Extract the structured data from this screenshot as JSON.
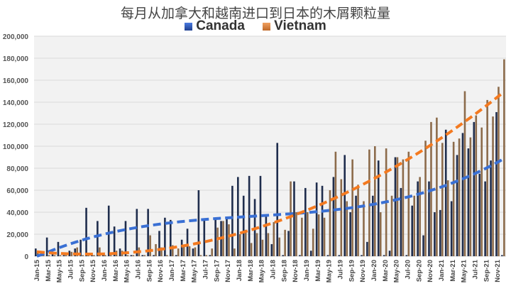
{
  "chart_data": {
    "type": "bar",
    "title": "每月从加拿大和越南进口到日本的木屑颗粒量",
    "xlabel": "",
    "ylabel": "",
    "ylim": [
      0,
      200000
    ],
    "yticks": [
      "0",
      "20,000",
      "40,000",
      "60,000",
      "80,000",
      "100,000",
      "120,000",
      "140,000",
      "160,000",
      "180,000",
      "200,000"
    ],
    "grid": true,
    "legend_position": "top",
    "categories": [
      "Jan-15",
      "Feb-15",
      "Mar-15",
      "Apr-15",
      "May-15",
      "Jun-15",
      "Jul-15",
      "Aug-15",
      "Sep-15",
      "Oct-15",
      "Nov-15",
      "Dec-15",
      "Jan-16",
      "Feb-16",
      "Mar-16",
      "Apr-16",
      "May-16",
      "Jun-16",
      "Jul-16",
      "Aug-16",
      "Sep-16",
      "Oct-16",
      "Nov-16",
      "Dec-16",
      "Jan-17",
      "Feb-17",
      "Mar-17",
      "Apr-17",
      "May-17",
      "Jun-17",
      "Jul-17",
      "Aug-17",
      "Sep-17",
      "Oct-17",
      "Nov-17",
      "Dec-17",
      "Jan-18",
      "Feb-18",
      "Mar-18",
      "Apr-18",
      "May-18",
      "Jun-18",
      "Jul-18",
      "Aug-18",
      "Sep-18",
      "Oct-18",
      "Nov-18",
      "Dec-18",
      "Jan-19",
      "Feb-19",
      "Mar-19",
      "Apr-19",
      "May-19",
      "Jun-19",
      "Jul-19",
      "Aug-19",
      "Sep-19",
      "Oct-19",
      "Nov-19",
      "Dec-19",
      "Jan-20",
      "Feb-20",
      "Mar-20",
      "Apr-20",
      "May-20",
      "Jun-20",
      "Jul-20",
      "Aug-20",
      "Sep-20",
      "Oct-20",
      "Nov-20",
      "Dec-20",
      "Jan-21",
      "Feb-21",
      "Mar-21",
      "Apr-21",
      "May-21",
      "Jun-21",
      "Jul-21",
      "Aug-21",
      "Sep-21",
      "Oct-21",
      "Nov-21",
      "Dec-21"
    ],
    "series": [
      {
        "name": "Canada",
        "color": "#1f2d4d",
        "trend_color": "#3a70d4",
        "values": [
          7000,
          1000,
          17000,
          2000,
          13000,
          1000,
          5000,
          7000,
          15000,
          44000,
          1000,
          32000,
          1000,
          46000,
          27000,
          7000,
          32000,
          1000,
          43000,
          1000,
          43000,
          1000,
          23000,
          35000,
          33000,
          1000,
          15000,
          25000,
          7000,
          60000,
          33000,
          1000,
          35000,
          32000,
          36000,
          64000,
          72000,
          55000,
          73000,
          52000,
          73000,
          36000,
          11000,
          103000,
          1000,
          23000,
          68000,
          1000,
          62000,
          5000,
          67000,
          64000,
          1000,
          72000,
          1000,
          92000,
          40000,
          55000,
          1000,
          13000,
          55000,
          87000,
          1000,
          5000,
          90000,
          62000,
          1000,
          46000,
          68000,
          19000,
          68000,
          40000,
          42000,
          115000,
          50000,
          92000,
          112000,
          98000,
          122000,
          75000,
          68000,
          87000,
          131000,
          1000
        ]
      },
      {
        "name": "Vietnam",
        "color": "#8c6b4b",
        "trend_color": "#f47a20",
        "values": [
          5000,
          1000,
          1000,
          1000,
          1000,
          1000,
          4000,
          8000,
          1000,
          2000,
          1000,
          8000,
          1000,
          1000,
          5000,
          5000,
          1000,
          1000,
          8000,
          1000,
          19000,
          11000,
          8000,
          1000,
          10000,
          7000,
          9000,
          9000,
          8000,
          1000,
          1000,
          7000,
          26000,
          32000,
          29000,
          7000,
          20000,
          24000,
          12000,
          21000,
          15000,
          21000,
          31000,
          17000,
          24000,
          68000,
          40000,
          35000,
          40000,
          25000,
          38000,
          35000,
          60000,
          95000,
          70000,
          50000,
          88000,
          65000,
          50000,
          97000,
          100000,
          40000,
          98000,
          55000,
          90000,
          88000,
          95000,
          55000,
          72000,
          105000,
          122000,
          126000,
          103000,
          69000,
          104000,
          107000,
          150000,
          108000,
          128000,
          117000,
          142000,
          127000,
          154000,
          179000
        ]
      }
    ]
  }
}
